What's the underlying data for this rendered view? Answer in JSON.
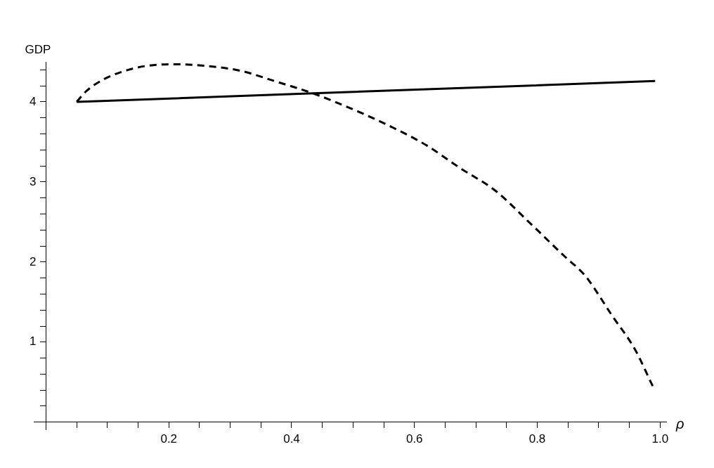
{
  "chart_data": {
    "type": "line",
    "xlabel": "ρ",
    "ylabel": "GDP",
    "xlim": [
      -0.02,
      1.01
    ],
    "ylim": [
      -0.09,
      4.5
    ],
    "xticks": [
      {
        "value": 0.05,
        "label": null
      },
      {
        "value": 0.1,
        "label": null
      },
      {
        "value": 0.15,
        "label": null
      },
      0.2,
      {
        "value": 0.25,
        "label": null
      },
      {
        "value": 0.3,
        "label": null
      },
      {
        "value": 0.35,
        "label": null
      },
      0.4,
      {
        "value": 0.45,
        "label": null
      },
      {
        "value": 0.5,
        "label": null
      },
      {
        "value": 0.55,
        "label": null
      },
      0.6,
      {
        "value": 0.65,
        "label": null
      },
      {
        "value": 0.7,
        "label": null
      },
      {
        "value": 0.75,
        "label": null
      },
      0.8,
      {
        "value": 0.85,
        "label": null
      },
      {
        "value": 0.9,
        "label": null
      },
      {
        "value": 0.95,
        "label": null
      },
      {
        "value": 1.0,
        "label": "1.0"
      }
    ],
    "yticks": [
      {
        "value": 0.2,
        "label": null
      },
      {
        "value": 0.4,
        "label": null
      },
      {
        "value": 0.6,
        "label": null
      },
      {
        "value": 0.8,
        "label": null
      },
      1,
      {
        "value": 1.2,
        "label": null
      },
      {
        "value": 1.4,
        "label": null
      },
      {
        "value": 1.6,
        "label": null
      },
      {
        "value": 1.8,
        "label": null
      },
      2,
      {
        "value": 2.2,
        "label": null
      },
      {
        "value": 2.4,
        "label": null
      },
      {
        "value": 2.6,
        "label": null
      },
      {
        "value": 2.8,
        "label": null
      },
      3,
      {
        "value": 3.2,
        "label": null
      },
      {
        "value": 3.4,
        "label": null
      },
      {
        "value": 3.6,
        "label": null
      },
      {
        "value": 3.8,
        "label": null
      },
      4,
      {
        "value": 4.2,
        "label": null
      },
      {
        "value": 4.4,
        "label": null
      }
    ],
    "grid": false,
    "legend": false,
    "marker": "none",
    "series": [
      {
        "color": "#000000",
        "line_style": "solid",
        "x": [
          0.05,
          0.992
        ],
        "values": [
          4.0,
          4.26
        ]
      },
      {
        "color": "#000000",
        "line_style": "dashed",
        "x": [
          0.05,
          0.065,
          0.096,
          0.134,
          0.164,
          0.209,
          0.259,
          0.316,
          0.372,
          0.437,
          0.505,
          0.562,
          0.619,
          0.675,
          0.732,
          0.789,
          0.846,
          0.872,
          0.884,
          0.921,
          0.959,
          0.988
        ],
        "values": [
          4.0,
          4.13,
          4.29,
          4.4,
          4.45,
          4.47,
          4.45,
          4.39,
          4.26,
          4.1,
          3.89,
          3.69,
          3.46,
          3.17,
          2.89,
          2.48,
          2.06,
          1.88,
          1.77,
          1.34,
          0.91,
          0.45
        ]
      }
    ]
  }
}
